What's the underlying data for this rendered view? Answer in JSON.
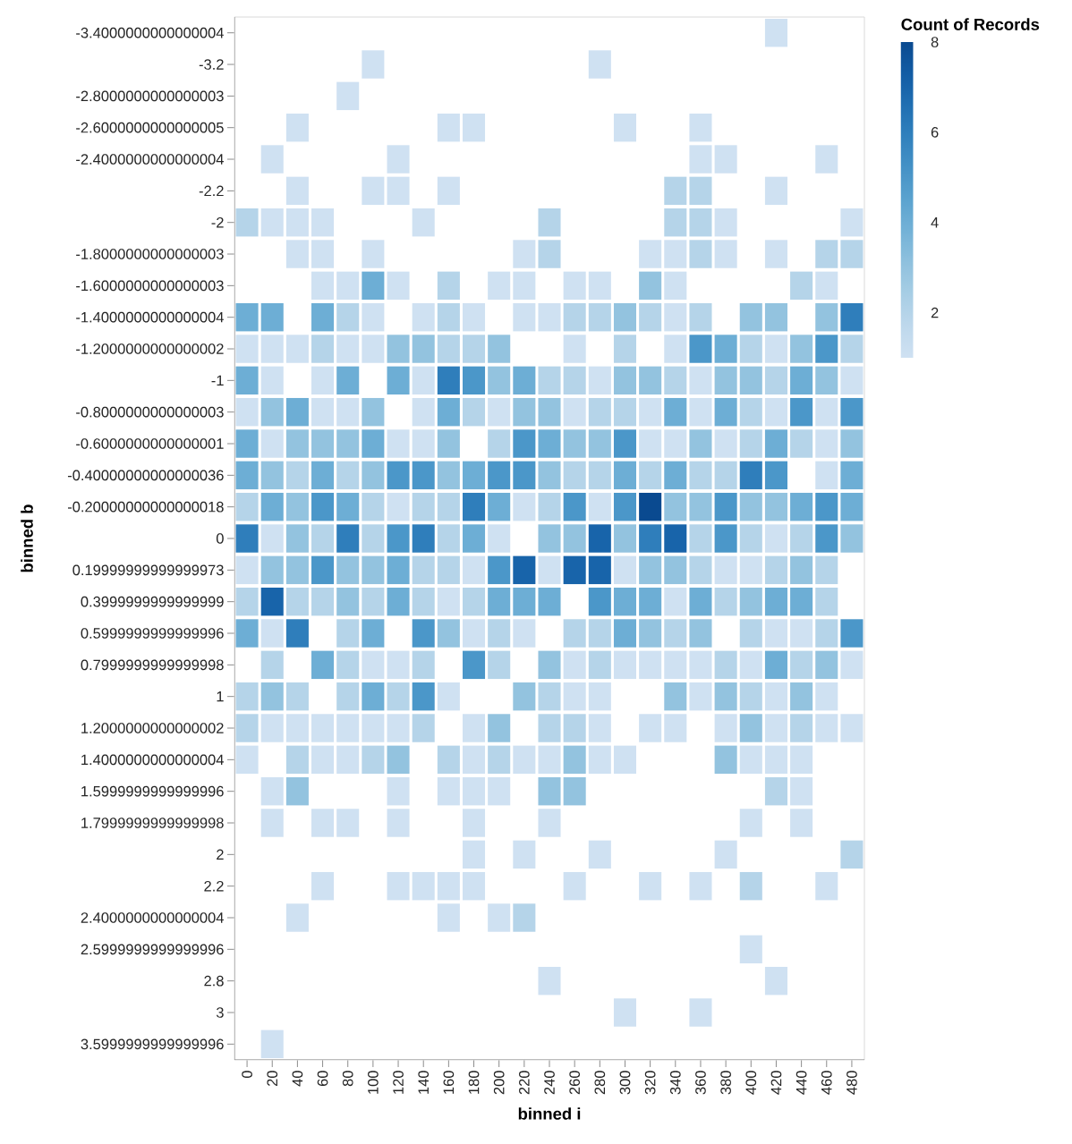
{
  "chart_data": {
    "type": "heatmap",
    "xlabel": "binned i",
    "ylabel": "binned b",
    "clabel": "Count of Records",
    "categories": [
      "0",
      "20",
      "40",
      "60",
      "80",
      "100",
      "120",
      "140",
      "160",
      "180",
      "200",
      "220",
      "240",
      "260",
      "280",
      "300",
      "320",
      "340",
      "360",
      "380",
      "400",
      "420",
      "440",
      "460",
      "480"
    ],
    "y_categories": [
      "-3.4000000000000004",
      "-3.2",
      "-2.8000000000000003",
      "-2.6000000000000005",
      "-2.4000000000000004",
      "-2.2",
      "-2",
      "-1.8000000000000003",
      "-1.6000000000000003",
      "-1.4000000000000004",
      "-1.2000000000000002",
      "-1",
      "-0.8000000000000003",
      "-0.6000000000000001",
      "-0.40000000000000036",
      "-0.20000000000000018",
      "0",
      "0.19999999999999973",
      "0.3999999999999999",
      "0.5999999999999996",
      "0.7999999999999998",
      "1",
      "1.2000000000000002",
      "1.4000000000000004",
      "1.5999999999999996",
      "1.7999999999999998",
      "2",
      "2.2",
      "2.4000000000000004",
      "2.5999999999999996",
      "2.8",
      "3",
      "3.5999999999999996"
    ],
    "cells": [
      [
        null,
        null,
        null,
        null,
        null,
        null,
        null,
        null,
        null,
        null,
        null,
        null,
        null,
        null,
        null,
        null,
        null,
        null,
        null,
        null,
        null,
        1,
        null,
        null,
        null
      ],
      [
        null,
        null,
        null,
        null,
        null,
        1,
        null,
        null,
        null,
        null,
        null,
        null,
        null,
        null,
        1,
        null,
        null,
        null,
        null,
        null,
        null,
        null,
        null,
        null,
        null
      ],
      [
        null,
        null,
        null,
        null,
        1,
        null,
        null,
        null,
        null,
        null,
        null,
        null,
        null,
        null,
        null,
        null,
        null,
        null,
        null,
        null,
        null,
        null,
        null,
        null,
        null
      ],
      [
        null,
        null,
        1,
        null,
        null,
        null,
        null,
        null,
        1,
        1,
        null,
        null,
        null,
        null,
        null,
        1,
        null,
        null,
        1,
        null,
        null,
        null,
        null,
        null,
        null
      ],
      [
        null,
        1,
        null,
        null,
        null,
        null,
        1,
        null,
        null,
        null,
        null,
        null,
        null,
        null,
        null,
        null,
        null,
        null,
        1,
        1,
        null,
        null,
        null,
        1,
        null
      ],
      [
        null,
        null,
        1,
        null,
        null,
        1,
        1,
        null,
        1,
        null,
        null,
        null,
        null,
        null,
        null,
        null,
        null,
        2,
        2,
        null,
        null,
        1,
        null,
        null,
        null
      ],
      [
        2,
        1,
        1,
        1,
        null,
        null,
        null,
        1,
        null,
        null,
        null,
        null,
        2,
        null,
        null,
        null,
        null,
        2,
        2,
        1,
        null,
        null,
        null,
        null,
        1
      ],
      [
        null,
        null,
        1,
        1,
        null,
        1,
        null,
        null,
        null,
        null,
        null,
        1,
        2,
        null,
        null,
        null,
        1,
        1,
        2,
        1,
        null,
        1,
        null,
        2,
        2
      ],
      [
        null,
        null,
        null,
        1,
        1,
        4,
        1,
        null,
        2,
        null,
        1,
        1,
        null,
        1,
        1,
        null,
        3,
        1,
        null,
        null,
        null,
        null,
        2,
        1,
        null
      ],
      [
        4,
        4,
        null,
        4,
        2,
        1,
        null,
        1,
        2,
        1,
        null,
        1,
        1,
        2,
        2,
        3,
        2,
        1,
        2,
        null,
        3,
        3,
        null,
        3,
        6
      ],
      [
        1,
        1,
        1,
        2,
        1,
        1,
        3,
        3,
        2,
        2,
        3,
        null,
        null,
        1,
        null,
        2,
        null,
        1,
        5,
        4,
        2,
        1,
        3,
        5,
        2
      ],
      [
        4,
        1,
        null,
        1,
        4,
        null,
        4,
        1,
        6,
        5,
        3,
        4,
        2,
        2,
        1,
        3,
        3,
        2,
        1,
        3,
        3,
        2,
        4,
        3,
        1
      ],
      [
        1,
        3,
        4,
        1,
        1,
        3,
        null,
        1,
        4,
        2,
        1,
        3,
        3,
        1,
        2,
        2,
        1,
        4,
        1,
        4,
        2,
        1,
        5,
        1,
        5
      ],
      [
        4,
        1,
        3,
        3,
        3,
        4,
        1,
        1,
        3,
        null,
        2,
        5,
        4,
        3,
        3,
        5,
        1,
        1,
        3,
        1,
        2,
        4,
        2,
        1,
        3
      ],
      [
        4,
        3,
        2,
        4,
        2,
        3,
        5,
        5,
        3,
        4,
        5,
        5,
        3,
        2,
        2,
        4,
        2,
        4,
        2,
        2,
        6,
        5,
        null,
        1,
        4
      ],
      [
        2,
        4,
        3,
        5,
        4,
        2,
        1,
        2,
        2,
        6,
        4,
        1,
        2,
        5,
        1,
        5,
        8,
        3,
        3,
        5,
        3,
        3,
        4,
        5,
        4
      ],
      [
        6,
        1,
        3,
        2,
        6,
        2,
        5,
        6,
        2,
        4,
        1,
        null,
        3,
        3,
        7,
        3,
        6,
        7,
        2,
        5,
        2,
        1,
        2,
        5,
        3
      ],
      [
        1,
        3,
        3,
        5,
        3,
        3,
        4,
        2,
        2,
        1,
        5,
        7,
        1,
        7,
        7,
        1,
        3,
        3,
        2,
        1,
        1,
        2,
        3,
        2,
        null
      ],
      [
        2,
        7,
        2,
        2,
        3,
        2,
        4,
        2,
        1,
        2,
        4,
        4,
        4,
        null,
        5,
        4,
        4,
        1,
        4,
        2,
        3,
        4,
        4,
        2,
        null
      ],
      [
        4,
        1,
        6,
        null,
        2,
        4,
        null,
        5,
        3,
        1,
        2,
        1,
        null,
        2,
        2,
        4,
        3,
        2,
        3,
        null,
        2,
        1,
        1,
        2,
        5
      ],
      [
        null,
        2,
        null,
        4,
        2,
        1,
        1,
        2,
        null,
        5,
        2,
        null,
        3,
        1,
        2,
        1,
        1,
        1,
        1,
        2,
        1,
        4,
        2,
        3,
        1
      ],
      [
        2,
        3,
        2,
        null,
        2,
        4,
        2,
        5,
        1,
        null,
        null,
        3,
        2,
        1,
        1,
        null,
        null,
        3,
        1,
        3,
        2,
        1,
        3,
        1,
        null
      ],
      [
        2,
        1,
        1,
        1,
        1,
        1,
        1,
        2,
        null,
        1,
        3,
        null,
        2,
        2,
        1,
        null,
        1,
        1,
        null,
        1,
        3,
        1,
        2,
        1,
        1
      ],
      [
        1,
        null,
        2,
        1,
        1,
        2,
        3,
        null,
        2,
        1,
        2,
        1,
        1,
        3,
        1,
        1,
        null,
        null,
        null,
        3,
        1,
        1,
        1,
        null,
        null
      ],
      [
        null,
        1,
        3,
        null,
        null,
        null,
        1,
        null,
        1,
        1,
        1,
        null,
        3,
        3,
        null,
        null,
        null,
        null,
        null,
        null,
        null,
        2,
        1,
        null,
        null
      ],
      [
        null,
        1,
        null,
        1,
        1,
        null,
        1,
        null,
        null,
        1,
        null,
        null,
        1,
        null,
        null,
        null,
        null,
        null,
        null,
        null,
        1,
        null,
        1,
        null,
        null
      ],
      [
        null,
        null,
        null,
        null,
        null,
        null,
        null,
        null,
        null,
        1,
        null,
        1,
        null,
        null,
        1,
        null,
        null,
        null,
        null,
        1,
        null,
        null,
        null,
        null,
        2
      ],
      [
        null,
        null,
        null,
        1,
        null,
        null,
        1,
        1,
        1,
        1,
        null,
        null,
        null,
        1,
        null,
        null,
        1,
        null,
        1,
        null,
        2,
        null,
        null,
        1,
        null
      ],
      [
        null,
        null,
        1,
        null,
        null,
        null,
        null,
        null,
        1,
        null,
        1,
        2,
        null,
        null,
        null,
        null,
        null,
        null,
        null,
        null,
        null,
        null,
        null,
        null,
        null
      ],
      [
        null,
        null,
        null,
        null,
        null,
        null,
        null,
        null,
        null,
        null,
        null,
        null,
        null,
        null,
        null,
        null,
        null,
        null,
        null,
        null,
        1,
        null,
        null,
        null,
        null
      ],
      [
        null,
        null,
        null,
        null,
        null,
        null,
        null,
        null,
        null,
        null,
        null,
        null,
        1,
        null,
        null,
        null,
        null,
        null,
        null,
        null,
        null,
        1,
        null,
        null,
        null
      ],
      [
        null,
        null,
        null,
        null,
        null,
        null,
        null,
        null,
        null,
        null,
        null,
        null,
        null,
        null,
        null,
        1,
        null,
        null,
        1,
        null,
        null,
        null,
        null,
        null,
        null
      ],
      [
        null,
        1,
        null,
        null,
        null,
        null,
        null,
        null,
        null,
        null,
        null,
        null,
        null,
        null,
        null,
        null,
        null,
        null,
        null,
        null,
        null,
        null,
        null,
        null,
        null
      ]
    ],
    "clim": [
      1,
      8
    ],
    "cticks": [
      2,
      4,
      6,
      8
    ]
  }
}
